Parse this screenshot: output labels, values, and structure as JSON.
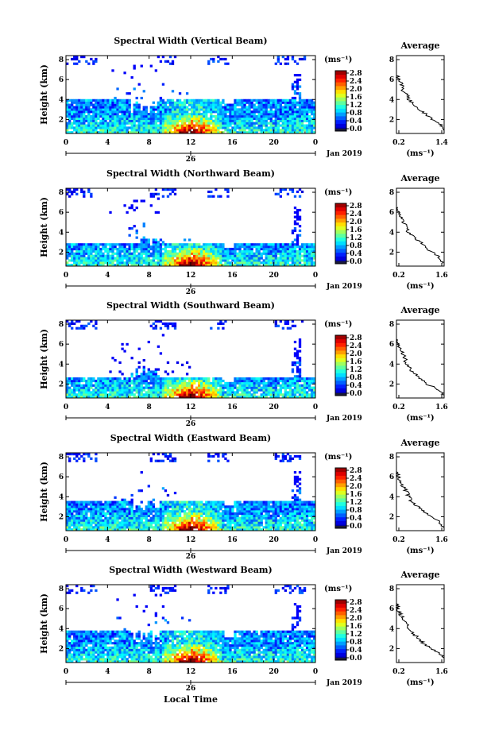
{
  "chart_data": [
    {
      "type": "heatmap",
      "title": "Spectral Width (Vertical Beam)",
      "ylabel": "Height (km)",
      "x_ticks": [
        "0",
        "4",
        "8",
        "12",
        "16",
        "20",
        "0"
      ],
      "y_ticks": [
        "2",
        "4",
        "6",
        "8"
      ],
      "date_label": "26",
      "date_right": "Jan 2019",
      "colorbar_label": "(ms⁻¹)",
      "colorbar_ticks": [
        "2.8",
        "2.4",
        "2.0",
        "1.6",
        "1.2",
        "0.8",
        "0.4",
        "0.0"
      ],
      "profile": {
        "title": "Average",
        "xlabel": "(ms⁻¹)",
        "x_ticks": [
          "0.2",
          "1.4"
        ],
        "y_ticks": [
          "2",
          "4",
          "6",
          "8"
        ],
        "xlim": [
          0.2,
          1.4
        ],
        "height": [
          0.9,
          1.5,
          2,
          2.5,
          3,
          3.5,
          4,
          4.5,
          5,
          5.5,
          6,
          6.5
        ],
        "width": [
          1.4,
          1.3,
          1.1,
          0.95,
          0.8,
          0.65,
          0.5,
          0.45,
          0.35,
          0.32,
          0.25,
          0.2
        ]
      }
    },
    {
      "type": "heatmap",
      "title": "Spectral Width (Northward Beam)",
      "ylabel": "Height (km)",
      "x_ticks": [
        "0",
        "4",
        "8",
        "12",
        "16",
        "20",
        "0"
      ],
      "y_ticks": [
        "2",
        "4",
        "6",
        "8"
      ],
      "date_label": "26",
      "date_right": "Jan 2019",
      "colorbar_label": "(ms⁻¹)",
      "colorbar_ticks": [
        "2.8",
        "2.4",
        "2.0",
        "1.6",
        "1.2",
        "0.8",
        "0.4",
        "0.0"
      ],
      "profile": {
        "title": "Average",
        "xlabel": "(ms⁻¹)",
        "x_ticks": [
          "0.2",
          "1.6"
        ],
        "y_ticks": [
          "2",
          "4",
          "6",
          "8"
        ],
        "xlim": [
          0.2,
          1.6
        ],
        "height": [
          0.9,
          1.5,
          2,
          2.5,
          3,
          3.5,
          4,
          4.5,
          5,
          5.5,
          6,
          6.5
        ],
        "width": [
          1.6,
          1.45,
          1.25,
          1.05,
          0.9,
          0.7,
          0.55,
          0.5,
          0.4,
          0.32,
          0.25,
          0.2
        ]
      }
    },
    {
      "type": "heatmap",
      "title": "Spectral Width (Southward Beam)",
      "ylabel": "Height (km)",
      "x_ticks": [
        "0",
        "4",
        "8",
        "12",
        "16",
        "20",
        "0"
      ],
      "y_ticks": [
        "2",
        "4",
        "6",
        "8"
      ],
      "date_label": "26",
      "date_right": "Jan 2019",
      "colorbar_label": "(ms⁻¹)",
      "colorbar_ticks": [
        "2.8",
        "2.4",
        "2.0",
        "1.6",
        "1.2",
        "0.8",
        "0.4",
        "0.0"
      ],
      "profile": {
        "title": "Average",
        "xlabel": "(ms⁻¹)",
        "x_ticks": [
          "0.2",
          "1.6"
        ],
        "y_ticks": [
          "2",
          "4",
          "6",
          "8"
        ],
        "xlim": [
          0.2,
          1.6
        ],
        "height": [
          0.9,
          1.5,
          2,
          2.5,
          3,
          3.5,
          4,
          4.5,
          5,
          5.5,
          6,
          6.5
        ],
        "width": [
          1.6,
          1.4,
          1.1,
          0.9,
          0.75,
          0.6,
          0.5,
          0.45,
          0.4,
          0.3,
          0.25,
          0.2
        ]
      }
    },
    {
      "type": "heatmap",
      "title": "Spectral Width (Eastward Beam)",
      "ylabel": "Height (km)",
      "x_ticks": [
        "0",
        "4",
        "8",
        "12",
        "16",
        "20",
        "0"
      ],
      "y_ticks": [
        "2",
        "4",
        "6",
        "8"
      ],
      "date_label": "26",
      "date_right": "Jan 2019",
      "colorbar_label": "(ms⁻¹)",
      "colorbar_ticks": [
        "2.8",
        "2.4",
        "2.0",
        "1.6",
        "1.2",
        "0.8",
        "0.4",
        "0.0"
      ],
      "profile": {
        "title": "Average",
        "xlabel": "(ms⁻¹)",
        "x_ticks": [
          "0.2",
          "1.6"
        ],
        "y_ticks": [
          "2",
          "4",
          "6",
          "8"
        ],
        "xlim": [
          0.2,
          1.6
        ],
        "height": [
          0.9,
          1.5,
          2,
          2.5,
          3,
          3.5,
          4,
          4.5,
          5,
          5.5,
          6,
          6.5
        ],
        "width": [
          1.6,
          1.45,
          1.2,
          1.0,
          0.85,
          0.65,
          0.55,
          0.5,
          0.4,
          0.32,
          0.25,
          0.2
        ]
      }
    },
    {
      "type": "heatmap",
      "title": "Spectral Width (Westward Beam)",
      "ylabel": "Height (km)",
      "x_ticks": [
        "0",
        "4",
        "8",
        "12",
        "16",
        "20",
        "0"
      ],
      "y_ticks": [
        "2",
        "4",
        "6",
        "8"
      ],
      "date_label": "26",
      "date_right": "Jan 2019",
      "colorbar_label": "(ms⁻¹)",
      "colorbar_ticks": [
        "2.8",
        "2.4",
        "2.0",
        "1.6",
        "1.2",
        "0.8",
        "0.4",
        "0.0"
      ],
      "xlabel": "Local Time",
      "profile": {
        "title": "Average",
        "xlabel": "(ms⁻¹)",
        "x_ticks": [
          "0.2",
          "1.6"
        ],
        "y_ticks": [
          "2",
          "4",
          "6",
          "8"
        ],
        "xlim": [
          0.2,
          1.6
        ],
        "height": [
          0.9,
          1.5,
          2,
          2.5,
          3,
          3.5,
          4,
          4.5,
          5,
          5.5,
          6,
          6.5
        ],
        "width": [
          1.6,
          1.5,
          1.25,
          1.0,
          0.85,
          0.7,
          0.55,
          0.5,
          0.4,
          0.3,
          0.25,
          0.2
        ]
      }
    }
  ],
  "colors": {
    "jet": [
      "#00007f",
      "#0000ff",
      "#007fff",
      "#00ffff",
      "#7fff7f",
      "#ffff00",
      "#ff7f00",
      "#ff0000",
      "#7f0000"
    ]
  }
}
